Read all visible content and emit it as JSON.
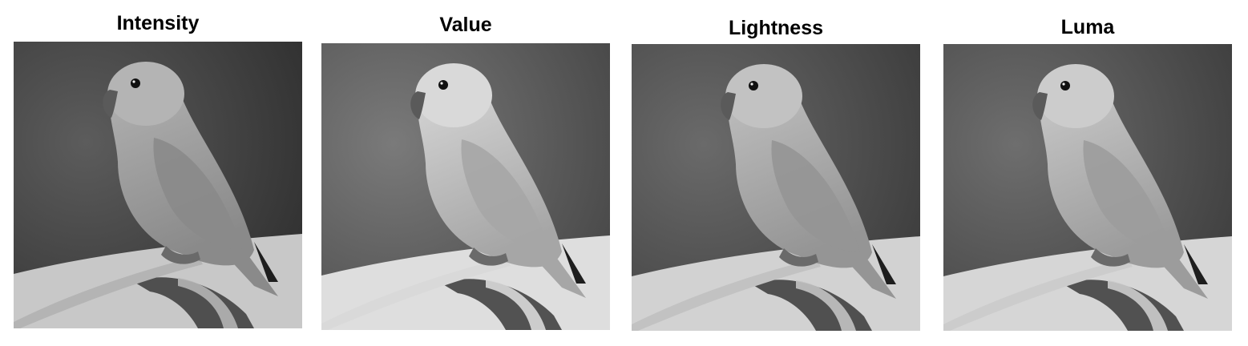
{
  "panels": [
    {
      "title": "Intensity",
      "tone": {
        "bg_dark": "#2e2e2e",
        "bg_mid": "#5c5c5c",
        "bird": "#8a8a8a",
        "bird_light": "#b4b4b4",
        "bottom": "#c8c8c8"
      }
    },
    {
      "title": "Value",
      "tone": {
        "bg_dark": "#454545",
        "bg_mid": "#7a7a7a",
        "bird": "#a6a6a6",
        "bird_light": "#d9d9d9",
        "bottom": "#dedede"
      }
    },
    {
      "title": "Lightness",
      "tone": {
        "bg_dark": "#3a3a3a",
        "bg_mid": "#6a6a6a",
        "bird": "#959595",
        "bird_light": "#c2c2c2",
        "bottom": "#d2d2d2"
      }
    },
    {
      "title": "Luma",
      "tone": {
        "bg_dark": "#3c3c3c",
        "bg_mid": "#6e6e6e",
        "bird": "#9c9c9c",
        "bird_light": "#cccccc",
        "bottom": "#d6d6d6"
      }
    }
  ],
  "subject_icon": "parrot-on-branch-photo"
}
